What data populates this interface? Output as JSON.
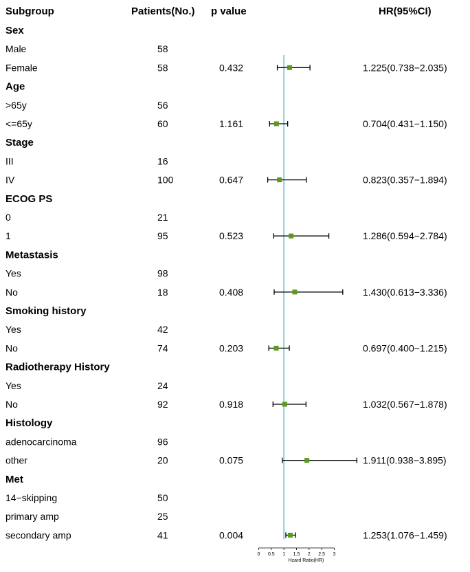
{
  "header": {
    "subgroup": "Subgroup",
    "patients": "Patients(No.)",
    "pvalue": "p value",
    "hr": "HR(95%CI)"
  },
  "colors": {
    "reference_line": "#8fd0d6",
    "marker": "#5b9a1f",
    "whisker": "#000000"
  },
  "chart_data": {
    "type": "forest",
    "xlabel": "Hzard Ratio(HR)",
    "xlim": [
      0,
      3
    ],
    "xticks": [
      "0",
      "0.5",
      "1",
      "1.5",
      "2",
      "2.5",
      "3"
    ],
    "reference_value": 1,
    "rows": [
      {
        "kind": "group",
        "label": "Sex"
      },
      {
        "kind": "sub",
        "label": "Male",
        "n": "58"
      },
      {
        "kind": "sub",
        "label": "Female",
        "n": "58",
        "p": "0.432",
        "hr_text": "1.225(0.738−2.035)",
        "hr": 1.225,
        "lo": 0.738,
        "hi": 2.035
      },
      {
        "kind": "group",
        "label": "Age"
      },
      {
        "kind": "sub",
        "label": ">65y",
        "n": "56"
      },
      {
        "kind": "sub",
        "label": "<=65y",
        "n": "60",
        "p": "1.161",
        "hr_text": "0.704(0.431−1.150)",
        "hr": 0.704,
        "lo": 0.431,
        "hi": 1.15
      },
      {
        "kind": "group",
        "label": "Stage"
      },
      {
        "kind": "sub",
        "label": "III",
        "n": "16"
      },
      {
        "kind": "sub",
        "label": "IV",
        "n": "100",
        "p": "0.647",
        "hr_text": "0.823(0.357−1.894)",
        "hr": 0.823,
        "lo": 0.357,
        "hi": 1.894
      },
      {
        "kind": "group",
        "label": "ECOG PS"
      },
      {
        "kind": "sub",
        "label": "0",
        "n": "21"
      },
      {
        "kind": "sub",
        "label": "1",
        "n": "95",
        "p": "0.523",
        "hr_text": "1.286(0.594−2.784)",
        "hr": 1.286,
        "lo": 0.594,
        "hi": 2.784
      },
      {
        "kind": "group",
        "label": "Metastasis"
      },
      {
        "kind": "sub",
        "label": "Yes",
        "n": "98"
      },
      {
        "kind": "sub",
        "label": "No",
        "n": "18",
        "p": "0.408",
        "hr_text": "1.430(0.613−3.336)",
        "hr": 1.43,
        "lo": 0.613,
        "hi": 3.336
      },
      {
        "kind": "group",
        "label": "Smoking history"
      },
      {
        "kind": "sub",
        "label": "Yes",
        "n": "42"
      },
      {
        "kind": "sub",
        "label": "No",
        "n": "74",
        "p": "0.203",
        "hr_text": "0.697(0.400−1.215)",
        "hr": 0.697,
        "lo": 0.4,
        "hi": 1.215
      },
      {
        "kind": "group",
        "label": "Radiotherapy History"
      },
      {
        "kind": "sub",
        "label": "Yes",
        "n": "24"
      },
      {
        "kind": "sub",
        "label": "No",
        "n": "92",
        "p": "0.918",
        "hr_text": "1.032(0.567−1.878)",
        "hr": 1.032,
        "lo": 0.567,
        "hi": 1.878
      },
      {
        "kind": "group",
        "label": "Histology"
      },
      {
        "kind": "sub",
        "label": "adenocarcinoma",
        "n": "96"
      },
      {
        "kind": "sub",
        "label": "other",
        "n": "20",
        "p": "0.075",
        "hr_text": "1.911(0.938−3.895)",
        "hr": 1.911,
        "lo": 0.938,
        "hi": 3.895
      },
      {
        "kind": "group",
        "label": "Met"
      },
      {
        "kind": "sub",
        "label": "14−skipping",
        "n": "50"
      },
      {
        "kind": "sub",
        "label": "primary amp",
        "n": "25"
      },
      {
        "kind": "sub",
        "label": "secondary amp",
        "n": "41",
        "p": "0.004",
        "hr_text": "1.253(1.076−1.459)",
        "hr": 1.253,
        "lo": 1.076,
        "hi": 1.459
      }
    ]
  }
}
